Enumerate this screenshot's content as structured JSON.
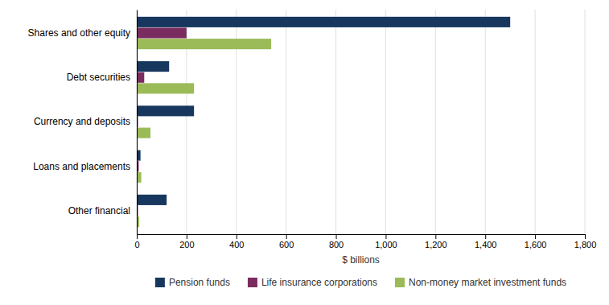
{
  "chart_data": {
    "type": "bar",
    "orientation": "horizontal",
    "categories": [
      "Shares and other equity",
      "Debt securities",
      "Currency and deposits",
      "Loans and placements",
      "Other financial"
    ],
    "series": [
      {
        "name": "Pension funds",
        "color": "#17375E",
        "values": [
          1500,
          130,
          230,
          15,
          120
        ]
      },
      {
        "name": "Life insurance corporations",
        "color": "#7B2C5E",
        "values": [
          200,
          30,
          5,
          8,
          5
        ]
      },
      {
        "name": "Non-money market investment funds",
        "color": "#9BBB59",
        "values": [
          540,
          230,
          55,
          18,
          10
        ]
      }
    ],
    "xlabel": "$ billions",
    "xlim": [
      0,
      1800
    ],
    "xticks": [
      0,
      200,
      400,
      600,
      800,
      {
        "value": 1000,
        "label": "1,000"
      },
      {
        "value": 1200,
        "label": "1,200"
      },
      {
        "value": 1400,
        "label": "1,400"
      },
      {
        "value": 1600,
        "label": "1,600"
      },
      {
        "value": 1800,
        "label": "1,800"
      }
    ],
    "grid": true,
    "legend": "bottom"
  }
}
